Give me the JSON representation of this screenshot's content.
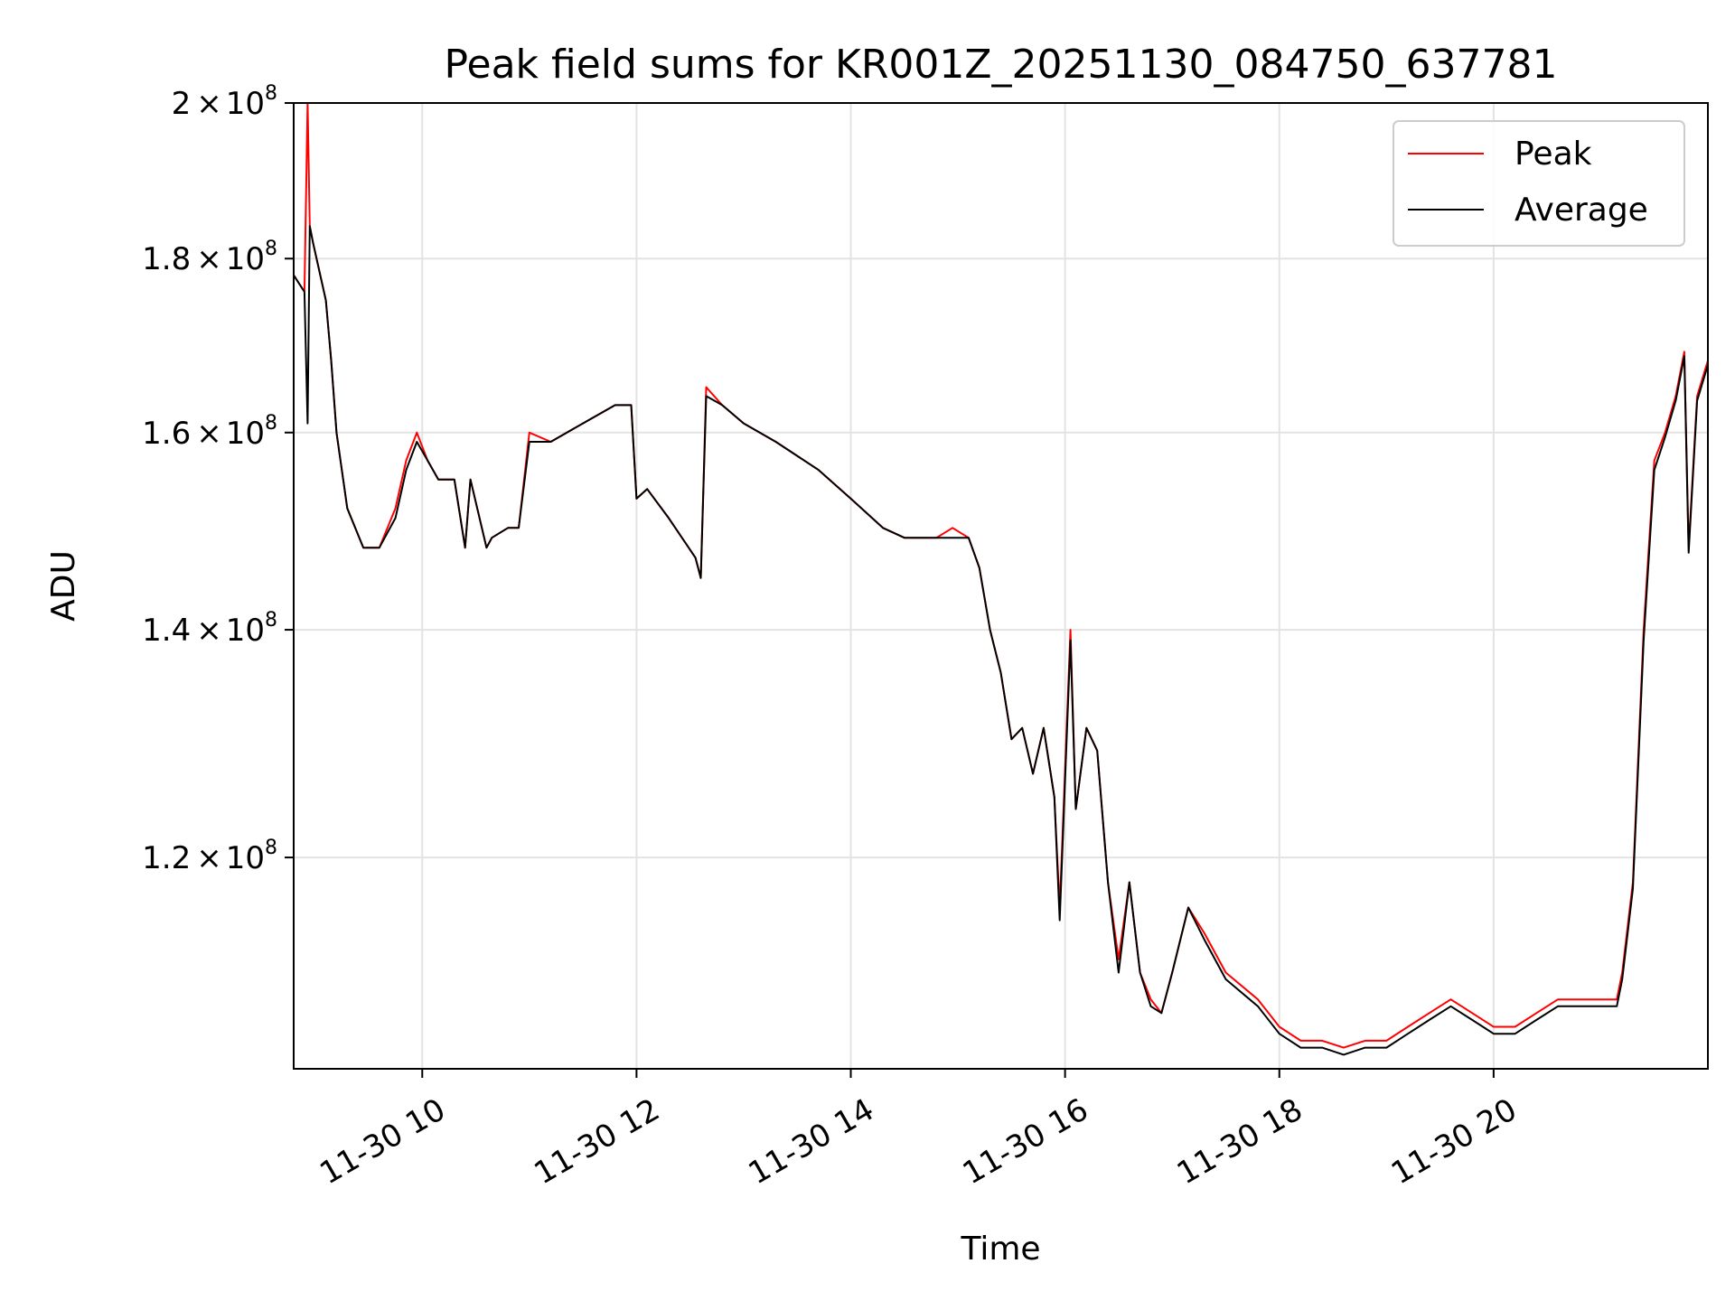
{
  "chart_data": {
    "type": "line",
    "title": "Peak field sums for KR001Z_20251130_084750_637781",
    "xlabel": "Time",
    "ylabel": "ADU",
    "yscale": "log",
    "xlim": [
      8.8,
      22.0
    ],
    "ylim": [
      104000000,
      200000000
    ],
    "grid": true,
    "legend_position": "top-right",
    "x_unit": "hour of 2025-11-30",
    "x_ticks": [
      {
        "value": 10,
        "label": "11-30 10"
      },
      {
        "value": 12,
        "label": "11-30 12"
      },
      {
        "value": 14,
        "label": "11-30 14"
      },
      {
        "value": 16,
        "label": "11-30 16"
      },
      {
        "value": 18,
        "label": "11-30 18"
      },
      {
        "value": 20,
        "label": "11-30 20"
      }
    ],
    "y_ticks": [
      {
        "value": 120000000,
        "mantissa": "1.2",
        "exp": "8"
      },
      {
        "value": 140000000,
        "mantissa": "1.4",
        "exp": "8"
      },
      {
        "value": 160000000,
        "mantissa": "1.6",
        "exp": "8"
      },
      {
        "value": 180000000,
        "mantissa": "1.8",
        "exp": "8"
      },
      {
        "value": 200000000,
        "mantissa": "2",
        "exp": "8"
      }
    ],
    "times_symbol": "×",
    "tick_base": "10",
    "series": [
      {
        "name": "Peak",
        "color": "#ff0000",
        "x": [
          8.8,
          8.9,
          8.93,
          8.95,
          8.98,
          9.1,
          9.15,
          9.2,
          9.3,
          9.45,
          9.6,
          9.75,
          9.85,
          9.95,
          10.05,
          10.15,
          10.3,
          10.4,
          10.45,
          10.6,
          10.65,
          10.8,
          10.9,
          11.0,
          11.2,
          11.5,
          11.8,
          11.95,
          12.0,
          12.1,
          12.3,
          12.55,
          12.6,
          12.65,
          12.8,
          13.0,
          13.3,
          13.7,
          14.0,
          14.3,
          14.5,
          14.8,
          14.95,
          15.1,
          15.2,
          15.3,
          15.4,
          15.5,
          15.6,
          15.7,
          15.8,
          15.9,
          15.95,
          16.05,
          16.1,
          16.2,
          16.3,
          16.4,
          16.5,
          16.6,
          16.7,
          16.8,
          16.9,
          17.0,
          17.15,
          17.3,
          17.5,
          17.8,
          18.0,
          18.2,
          18.4,
          18.6,
          18.8,
          19.0,
          19.2,
          19.4,
          19.6,
          19.8,
          20.0,
          20.2,
          20.4,
          20.6,
          20.8,
          21.0,
          21.15,
          21.2,
          21.3,
          21.4,
          21.5,
          21.6,
          21.7,
          21.78,
          21.82,
          21.9,
          22.0
        ],
        "y": [
          178000000,
          176000000,
          200000000,
          184000000,
          182000000,
          175000000,
          168000000,
          160000000,
          152000000,
          148000000,
          148000000,
          152000000,
          157000000,
          160000000,
          157000000,
          155000000,
          155000000,
          148000000,
          155000000,
          148000000,
          149000000,
          150000000,
          150000000,
          160000000,
          159000000,
          161000000,
          163000000,
          163000000,
          153000000,
          154000000,
          151000000,
          147000000,
          145000000,
          165000000,
          163000000,
          161000000,
          159000000,
          156000000,
          153000000,
          150000000,
          149000000,
          149000000,
          150000000,
          149000000,
          146000000,
          140000000,
          136000000,
          130000000,
          131000000,
          127000000,
          131000000,
          125000000,
          116000000,
          140000000,
          124000000,
          131000000,
          129000000,
          118000000,
          112000000,
          118000000,
          111000000,
          109000000,
          108000000,
          111000000,
          116000000,
          114000000,
          111000000,
          109000000,
          107000000,
          106000000,
          106000000,
          105500000,
          106000000,
          106000000,
          107000000,
          108000000,
          109000000,
          108000000,
          107000000,
          107000000,
          108000000,
          109000000,
          109000000,
          109000000,
          109000000,
          111000000,
          118000000,
          140000000,
          157000000,
          160000000,
          164000000,
          169000000,
          148000000,
          164000000,
          168000000
        ]
      },
      {
        "name": "Average",
        "color": "#000000",
        "x": [
          8.8,
          8.9,
          8.93,
          8.95,
          8.98,
          9.1,
          9.15,
          9.2,
          9.3,
          9.45,
          9.6,
          9.75,
          9.85,
          9.95,
          10.05,
          10.15,
          10.3,
          10.4,
          10.45,
          10.6,
          10.65,
          10.8,
          10.9,
          11.0,
          11.2,
          11.5,
          11.8,
          11.95,
          12.0,
          12.1,
          12.3,
          12.55,
          12.6,
          12.65,
          12.8,
          13.0,
          13.3,
          13.7,
          14.0,
          14.3,
          14.5,
          14.8,
          14.95,
          15.1,
          15.2,
          15.3,
          15.4,
          15.5,
          15.6,
          15.7,
          15.8,
          15.9,
          15.95,
          16.05,
          16.1,
          16.2,
          16.3,
          16.4,
          16.5,
          16.6,
          16.7,
          16.8,
          16.9,
          17.0,
          17.15,
          17.3,
          17.5,
          17.8,
          18.0,
          18.2,
          18.4,
          18.6,
          18.8,
          19.0,
          19.2,
          19.4,
          19.6,
          19.8,
          20.0,
          20.2,
          20.4,
          20.6,
          20.8,
          21.0,
          21.15,
          21.2,
          21.3,
          21.4,
          21.5,
          21.6,
          21.7,
          21.78,
          21.82,
          21.9,
          22.0
        ],
        "y": [
          178000000,
          176000000,
          161000000,
          184000000,
          182000000,
          175000000,
          168000000,
          160000000,
          152000000,
          148000000,
          148000000,
          151000000,
          156000000,
          159000000,
          157000000,
          155000000,
          155000000,
          148000000,
          155000000,
          148000000,
          149000000,
          150000000,
          150000000,
          159000000,
          159000000,
          161000000,
          163000000,
          163000000,
          153000000,
          154000000,
          151000000,
          147000000,
          145000000,
          164000000,
          163000000,
          161000000,
          159000000,
          156000000,
          153000000,
          150000000,
          149000000,
          149000000,
          149000000,
          149000000,
          146000000,
          140000000,
          136000000,
          130000000,
          131000000,
          127000000,
          131000000,
          125000000,
          115000000,
          139000000,
          124000000,
          131000000,
          129000000,
          118000000,
          111000000,
          118000000,
          111000000,
          108500000,
          108000000,
          111000000,
          116000000,
          113500000,
          110500000,
          108500000,
          106500000,
          105500000,
          105500000,
          105000000,
          105500000,
          105500000,
          106500000,
          107500000,
          108500000,
          107500000,
          106500000,
          106500000,
          107500000,
          108500000,
          108500000,
          108500000,
          108500000,
          110500000,
          117500000,
          139000000,
          156000000,
          159500000,
          163500000,
          168500000,
          147500000,
          163500000,
          167500000
        ]
      }
    ]
  }
}
